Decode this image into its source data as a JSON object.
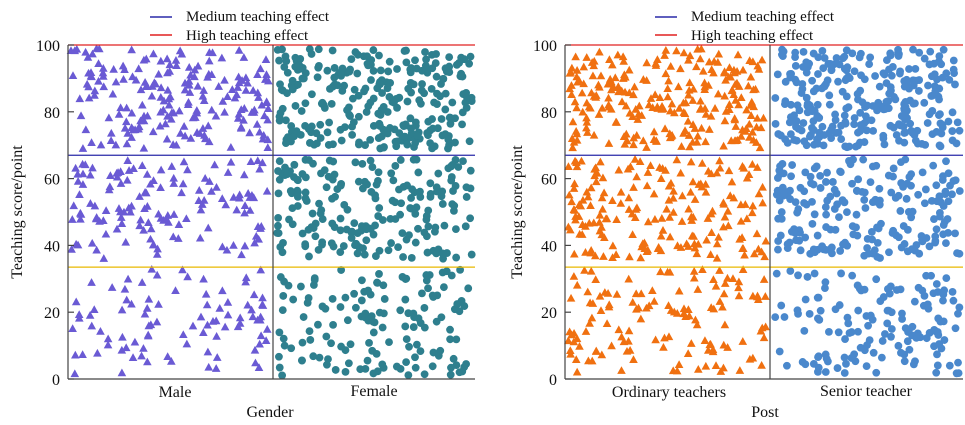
{
  "legend": [
    {
      "label": "Medium teaching effect",
      "color": "#2a2aa8"
    },
    {
      "label": "High teaching effect",
      "color": "#e02020"
    }
  ],
  "chart_data": [
    {
      "type": "scatter",
      "xlabel": "Gender",
      "ylabel": "Teaching score/point",
      "categories": [
        "Male",
        "Female"
      ],
      "ylim": [
        0,
        100
      ],
      "yticks": [
        0,
        20,
        40,
        60,
        80,
        100
      ],
      "reference_lines": [
        {
          "y": 100,
          "color": "#e02020"
        },
        {
          "y": 67,
          "color": "#2a2aa8"
        },
        {
          "y": 33.5,
          "color": "#e8b800"
        }
      ],
      "groups": [
        {
          "category": "Male",
          "marker": "triangle",
          "color": "#6a5ad4",
          "count": 420,
          "seed": 11
        },
        {
          "category": "Female",
          "marker": "circle",
          "color": "#2e7f8e",
          "count": 620,
          "seed": 23
        }
      ]
    },
    {
      "type": "scatter",
      "xlabel": "Post",
      "ylabel": "Teaching score/point",
      "categories": [
        "Ordinary teachers",
        "Senior teacher"
      ],
      "ylim": [
        0,
        100
      ],
      "yticks": [
        0,
        20,
        40,
        60,
        80,
        100
      ],
      "reference_lines": [
        {
          "y": 100,
          "color": "#e02020"
        },
        {
          "y": 67,
          "color": "#2a2aa8"
        },
        {
          "y": 33.5,
          "color": "#e8b800"
        }
      ],
      "groups": [
        {
          "category": "Ordinary teachers",
          "marker": "triangle",
          "color": "#f07010",
          "count": 560,
          "seed": 37
        },
        {
          "category": "Senior teacher",
          "marker": "circle",
          "color": "#4a88cc",
          "count": 640,
          "seed": 53
        }
      ]
    }
  ]
}
